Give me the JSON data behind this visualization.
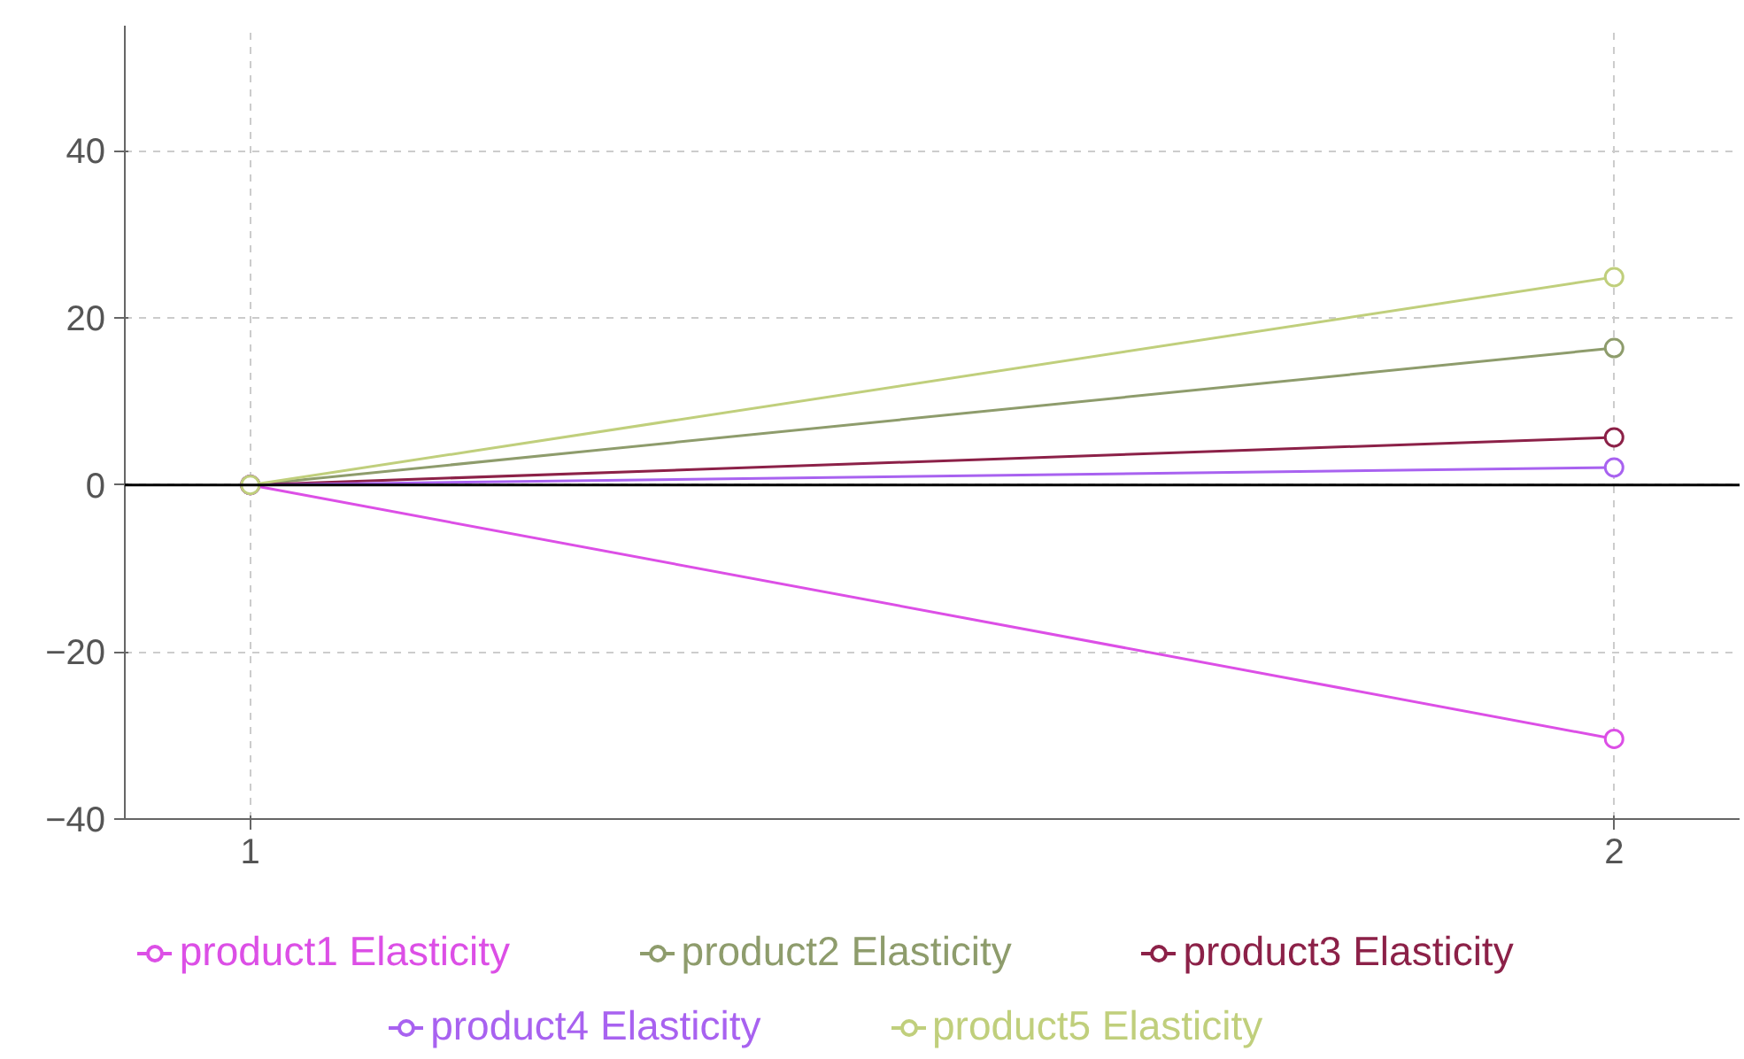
{
  "chart_data": {
    "type": "line",
    "x": [
      1,
      2
    ],
    "series": [
      {
        "name": "product1 Elasticity",
        "color": "#dc4fe6",
        "values": [
          0,
          -30.4
        ]
      },
      {
        "name": "product2 Elasticity",
        "color": "#8e9c6c",
        "values": [
          0,
          16.4
        ]
      },
      {
        "name": "product3 Elasticity",
        "color": "#8c2148",
        "values": [
          0,
          5.7
        ]
      },
      {
        "name": "product4 Elasticity",
        "color": "#a862f0",
        "values": [
          0,
          2.1
        ]
      },
      {
        "name": "product5 Elasticity",
        "color": "#c0cf7c",
        "values": [
          0,
          24.9
        ]
      }
    ],
    "xlim": [
      0.908,
      2.092
    ],
    "xticks": [
      1,
      2
    ],
    "ylim": [
      -40,
      55
    ],
    "yticks": [
      -40,
      -20,
      0,
      20,
      40
    ],
    "ref_lines": [
      {
        "axis": "y",
        "value": 0,
        "color": "#000000"
      }
    ],
    "grid": true,
    "legend": "bottom",
    "marker": "circle",
    "line_style": "solid"
  }
}
